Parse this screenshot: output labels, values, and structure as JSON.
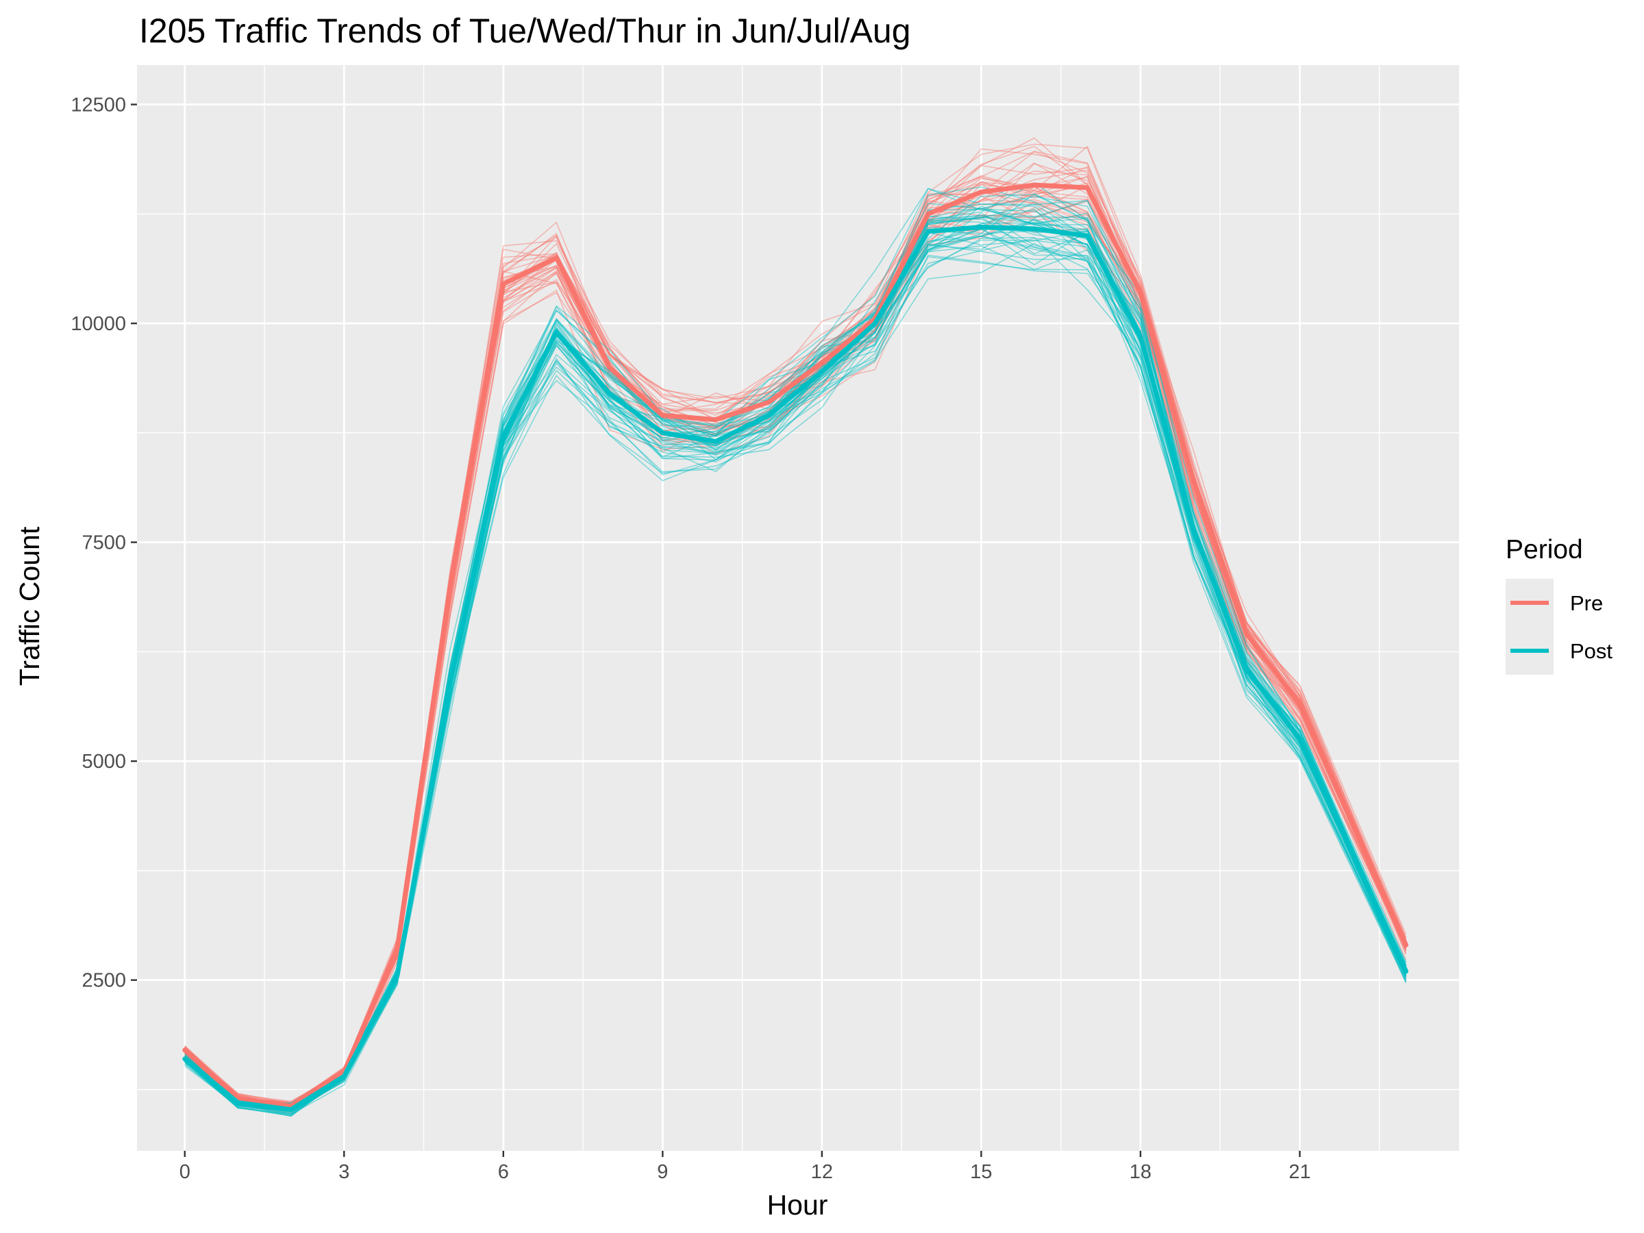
{
  "chart_data": {
    "type": "line",
    "title": "I205 Traffic Trends of Tue/Wed/Thur in Jun/Jul/Aug",
    "xlabel": "Hour",
    "ylabel": "Traffic Count",
    "xlim": [
      -0.9,
      24.0
    ],
    "ylim": [
      550,
      12950
    ],
    "x_ticks": [
      0,
      3,
      6,
      9,
      12,
      15,
      18,
      21
    ],
    "y_ticks": [
      2500,
      5000,
      7500,
      10000,
      12500
    ],
    "grid": true,
    "legend": {
      "title": "Period",
      "position": "right"
    },
    "x": [
      0,
      1,
      2,
      3,
      4,
      5,
      6,
      7,
      8,
      9,
      10,
      11,
      12,
      13,
      14,
      15,
      16,
      17,
      18,
      19,
      20,
      21,
      23
    ],
    "series": [
      {
        "name": "Pre",
        "color": "#F8766D",
        "values": [
          1700,
          1150,
          1060,
          1450,
          2850,
          7000,
          10450,
          10750,
          9500,
          8950,
          8900,
          9100,
          9550,
          10050,
          11250,
          11500,
          11580,
          11550,
          10350,
          8200,
          6450,
          5650,
          2900
        ]
      },
      {
        "name": "Post",
        "color": "#00BFC4",
        "values": [
          1600,
          1100,
          1020,
          1400,
          2550,
          5900,
          8700,
          9900,
          9200,
          8750,
          8650,
          8950,
          9450,
          10000,
          11050,
          11100,
          11080,
          11000,
          9850,
          7650,
          6050,
          5250,
          2600
        ]
      }
    ]
  }
}
